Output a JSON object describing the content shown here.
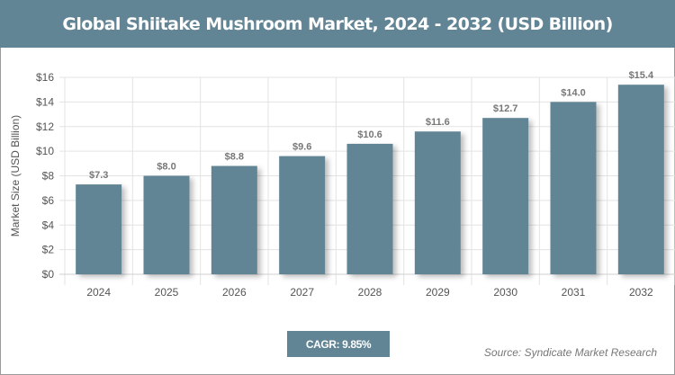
{
  "title": "Global Shiitake Mushroom Market, 2024 - 2032 (USD Billion)",
  "cagr": "CAGR: 9.85%",
  "source": "Source: Syndicate Market Research",
  "colors": {
    "bar": "#628595",
    "header": "#628595"
  },
  "chart_data": {
    "type": "bar",
    "title": "Global Shiitake Mushroom Market, 2024 - 2032 (USD Billion)",
    "ylabel": "Market Size (USD Billion)",
    "xlabel": "",
    "categories": [
      "2024",
      "2025",
      "2026",
      "2027",
      "2028",
      "2029",
      "2030",
      "2031",
      "2032"
    ],
    "values": [
      7.3,
      8.0,
      8.8,
      9.6,
      10.6,
      11.6,
      12.7,
      14.0,
      15.4
    ],
    "data_labels": [
      "$7.3",
      "$8.0",
      "$8.8",
      "$9.6",
      "$10.6",
      "$11.6",
      "$12.7",
      "$14.0",
      "$15.4"
    ],
    "ylim": [
      0,
      16
    ],
    "yticks": [
      0,
      2,
      4,
      6,
      8,
      10,
      12,
      14,
      16
    ],
    "ytick_labels": [
      "$0",
      "$2",
      "$4",
      "$6",
      "$8",
      "$10",
      "$12",
      "$14",
      "$16"
    ],
    "grid": true,
    "legend": "none"
  }
}
